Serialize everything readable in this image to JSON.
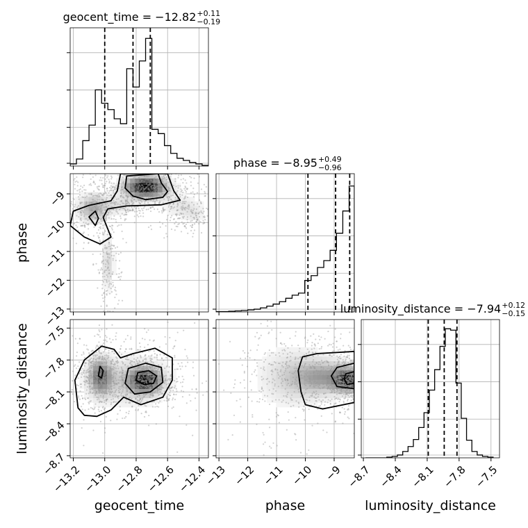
{
  "chart_data": {
    "type": "corner",
    "parameters": [
      "geocent_time",
      "phase",
      "luminosity_distance"
    ],
    "grid": true,
    "marginals": [
      {
        "param": "geocent_time",
        "title": {
          "prefix": "geocent_time = ",
          "median": "−12.82",
          "upper": "+0.11",
          "lower": "−0.19"
        },
        "quantiles": [
          -13.0,
          -12.82,
          -12.71
        ],
        "bin_edges": [
          -13.22,
          -13.18,
          -13.14,
          -13.1,
          -13.06,
          -13.02,
          -12.98,
          -12.94,
          -12.9,
          -12.86,
          -12.82,
          -12.78,
          -12.74,
          -12.7,
          -12.66,
          -12.62,
          -12.58,
          -12.54,
          -12.5,
          -12.46,
          -12.42,
          -12.38,
          -12.34
        ],
        "counts": [
          3,
          10,
          36,
          58,
          108,
          89,
          80,
          67,
          60,
          138,
          112,
          149,
          181,
          52,
          46,
          29,
          18,
          11,
          8,
          5,
          3,
          1
        ],
        "xlim": [
          -13.22,
          -12.34
        ],
        "ylim": [
          0,
          196
        ]
      },
      {
        "param": "phase",
        "title": {
          "prefix": "phase = ",
          "median": "−8.95",
          "upper": "+0.49",
          "lower": "−0.96"
        },
        "quantiles": [
          -9.91,
          -8.95,
          -8.46
        ],
        "bin_edges": [
          -13.1,
          -12.88,
          -12.66,
          -12.44,
          -12.22,
          -12.0,
          -11.78,
          -11.56,
          -11.34,
          -11.12,
          -10.9,
          -10.68,
          -10.46,
          -10.24,
          -10.02,
          -9.8,
          -9.58,
          -9.36,
          -9.14,
          -8.92,
          -8.7,
          -8.48,
          -8.3
        ],
        "counts": [
          1,
          1,
          2,
          3,
          4,
          6,
          8,
          12,
          17,
          23,
          30,
          40,
          49,
          55,
          92,
          106,
          130,
          150,
          180,
          230,
          295,
          368
        ],
        "xlim": [
          -13.1,
          -8.3
        ],
        "ylim": [
          0,
          404
        ]
      },
      {
        "param": "luminosity_distance",
        "title": {
          "prefix": "luminosity_distance = ",
          "median": "−7.94",
          "upper": "+0.12",
          "lower": "−0.15"
        },
        "quantiles": [
          -8.09,
          -7.94,
          -7.82
        ],
        "bin_edges": [
          -8.68,
          -8.63,
          -8.58,
          -8.53,
          -8.48,
          -8.43,
          -8.38,
          -8.33,
          -8.28,
          -8.23,
          -8.18,
          -8.13,
          -8.08,
          -8.03,
          -7.98,
          -7.93,
          -7.88,
          -7.83,
          -7.78,
          -7.73,
          -7.68,
          -7.63,
          -7.58,
          -7.53,
          -7.48
        ],
        "counts": [
          0,
          0,
          0,
          0,
          1,
          2,
          4,
          9,
          16,
          26,
          43,
          64,
          96,
          125,
          158,
          183,
          181,
          106,
          56,
          25,
          9,
          4,
          2,
          1
        ],
        "xlim": [
          -8.72,
          -7.42
        ],
        "ylim": [
          0,
          196
        ]
      }
    ],
    "pairs": [
      {
        "x": "geocent_time",
        "y": "phase",
        "xlim": [
          -13.22,
          -12.34
        ],
        "ylim": [
          -13.1,
          -8.3
        ],
        "blobs": [
          {
            "cx": -12.74,
            "cy": -8.75,
            "sx": 0.1,
            "sy": 0.28,
            "w": 0.42
          },
          {
            "cx": -13.08,
            "cy": -9.5,
            "sx": 0.07,
            "sy": 0.38,
            "w": 0.2
          },
          {
            "cx": -12.9,
            "cy": -9.4,
            "sx": 0.08,
            "sy": 0.22,
            "w": 0.1
          },
          {
            "cx": -12.98,
            "cy": -11.4,
            "sx": 0.03,
            "sy": 0.75,
            "w": 0.13
          },
          {
            "cx": -12.5,
            "cy": -9.45,
            "sx": 0.1,
            "sy": 0.3,
            "w": 0.1
          },
          {
            "cx": -12.42,
            "cy": -9.8,
            "sx": 0.05,
            "sy": 0.2,
            "w": 0.05
          }
        ],
        "contours": [
          [
            [
              -12.86,
              -8.38
            ],
            [
              -12.66,
              -8.3
            ],
            [
              -12.64,
              -8.62
            ],
            [
              -12.6,
              -8.92
            ],
            [
              -12.63,
              -9.12
            ],
            [
              -12.74,
              -9.2
            ],
            [
              -12.82,
              -9.08
            ],
            [
              -12.87,
              -8.8
            ]
          ],
          [
            [
              -12.9,
              -8.3
            ],
            [
              -12.6,
              -8.3
            ],
            [
              -12.56,
              -8.9
            ],
            [
              -12.52,
              -9.22
            ],
            [
              -12.64,
              -9.38
            ],
            [
              -12.86,
              -9.42
            ],
            [
              -12.98,
              -9.52
            ],
            [
              -13.01,
              -9.82
            ],
            [
              -12.96,
              -10.5
            ],
            [
              -13.03,
              -10.74
            ],
            [
              -13.13,
              -10.5
            ],
            [
              -13.22,
              -10.1
            ],
            [
              -13.2,
              -9.6
            ],
            [
              -13.1,
              -9.4
            ],
            [
              -12.96,
              -9.24
            ],
            [
              -12.92,
              -8.9
            ]
          ],
          [
            [
              -13.1,
              -9.8
            ],
            [
              -13.06,
              -9.6
            ],
            [
              -13.04,
              -9.85
            ],
            [
              -13.06,
              -10.1
            ]
          ]
        ],
        "seed": 11
      },
      {
        "x": "geocent_time",
        "y": "luminosity_distance",
        "xlim": [
          -13.22,
          -12.34
        ],
        "ylim": [
          -8.72,
          -7.42
        ],
        "blobs": [
          {
            "cx": -12.74,
            "cy": -7.99,
            "sx": 0.07,
            "sy": 0.08,
            "w": 0.45
          },
          {
            "cx": -13.03,
            "cy": -7.95,
            "sx": 0.05,
            "sy": 0.12,
            "w": 0.35
          },
          {
            "cx": -12.85,
            "cy": -8.0,
            "sx": 0.2,
            "sy": 0.18,
            "w": 0.2
          }
        ],
        "contours": [
          [
            [
              -13.17,
              -8.25
            ],
            [
              -13.19,
              -7.99
            ],
            [
              -13.13,
              -7.8
            ],
            [
              -13.02,
              -7.67
            ],
            [
              -12.94,
              -7.7
            ],
            [
              -12.9,
              -7.78
            ],
            [
              -12.82,
              -7.74
            ],
            [
              -12.68,
              -7.69
            ],
            [
              -12.57,
              -7.78
            ],
            [
              -12.57,
              -7.99
            ],
            [
              -12.63,
              -8.15
            ],
            [
              -12.77,
              -8.22
            ],
            [
              -12.88,
              -8.15
            ],
            [
              -12.96,
              -8.27
            ],
            [
              -13.05,
              -8.33
            ],
            [
              -13.13,
              -8.32
            ]
          ],
          [
            [
              -12.87,
              -8.02
            ],
            [
              -12.85,
              -7.88
            ],
            [
              -12.74,
              -7.83
            ],
            [
              -12.64,
              -7.87
            ],
            [
              -12.63,
              -8.01
            ],
            [
              -12.71,
              -8.1
            ],
            [
              -12.81,
              -8.12
            ]
          ],
          [
            [
              -12.8,
              -7.99
            ],
            [
              -12.79,
              -7.92
            ],
            [
              -12.72,
              -7.9
            ],
            [
              -12.67,
              -7.95
            ],
            [
              -12.69,
              -8.02
            ],
            [
              -12.75,
              -8.03
            ]
          ],
          [
            [
              -13.04,
              -7.95
            ],
            [
              -13.03,
              -7.86
            ],
            [
              -13.01,
              -7.9
            ],
            [
              -13.02,
              -7.97
            ]
          ]
        ],
        "seed": 23
      },
      {
        "x": "phase",
        "y": "luminosity_distance",
        "xlim": [
          -13.1,
          -8.3
        ],
        "ylim": [
          -8.72,
          -7.42
        ],
        "blobs": [
          {
            "cx": -8.45,
            "cy": -7.99,
            "sx": 0.35,
            "sy": 0.07,
            "w": 0.5
          },
          {
            "cx": -9.2,
            "cy": -7.96,
            "sx": 0.8,
            "sy": 0.12,
            "w": 0.3
          },
          {
            "cx": -10.5,
            "cy": -7.96,
            "sx": 0.9,
            "sy": 0.22,
            "w": 0.2
          }
        ],
        "contours": [
          [
            [
              -8.3,
              -7.72
            ],
            [
              -9.6,
              -7.74
            ],
            [
              -10.1,
              -7.77
            ],
            [
              -10.25,
              -7.9
            ],
            [
              -10.15,
              -8.1
            ],
            [
              -10.0,
              -8.22
            ],
            [
              -9.4,
              -8.26
            ],
            [
              -8.3,
              -8.2
            ]
          ],
          [
            [
              -8.3,
              -7.83
            ],
            [
              -8.9,
              -7.87
            ],
            [
              -9.1,
              -7.95
            ],
            [
              -8.9,
              -8.05
            ],
            [
              -8.3,
              -8.07
            ]
          ],
          [
            [
              -8.3,
              -7.91
            ],
            [
              -8.6,
              -7.93
            ],
            [
              -8.65,
              -7.98
            ],
            [
              -8.55,
              -8.03
            ],
            [
              -8.3,
              -8.02
            ]
          ]
        ],
        "seed": 37
      }
    ],
    "axes": {
      "geocent_time": {
        "ticks": [
          -13.2,
          -13.0,
          -12.8,
          -12.6,
          -12.4
        ],
        "labels": [
          "−13.2",
          "−13.0",
          "−12.8",
          "−12.6",
          "−12.4"
        ]
      },
      "phase": {
        "ticks": [
          -13,
          -12,
          -11,
          -10,
          -9
        ],
        "labels": [
          "−13",
          "−12",
          "−11",
          "−10",
          "−9"
        ]
      },
      "luminosity_distance": {
        "ticks": [
          -8.7,
          -8.4,
          -8.1,
          -7.8,
          -7.5
        ],
        "labels": [
          "−8.7",
          "−8.4",
          "−8.1",
          "−7.8",
          "−7.5"
        ]
      }
    },
    "xlabels": [
      "geocent_time",
      "phase",
      "luminosity_distance"
    ],
    "ylabels": [
      "",
      "phase",
      "luminosity_distance"
    ]
  }
}
